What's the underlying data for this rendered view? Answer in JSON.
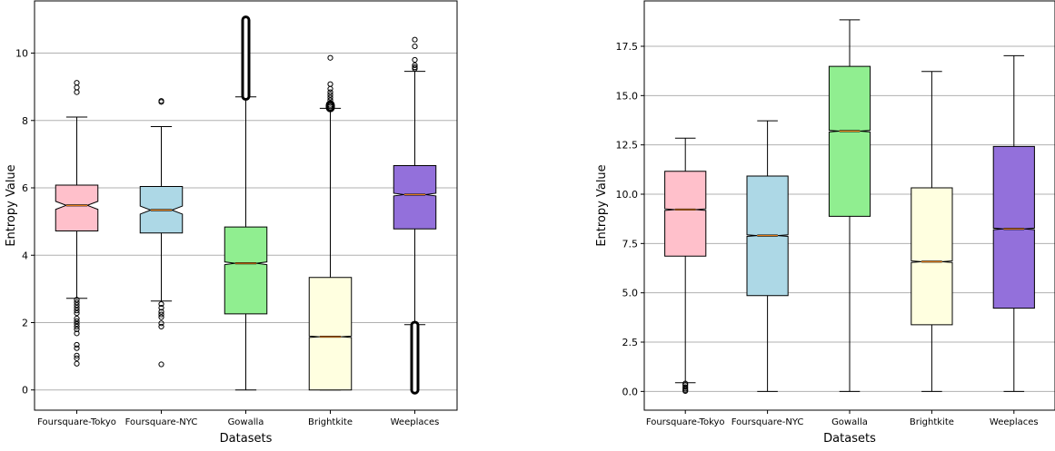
{
  "chart_data": [
    {
      "type": "boxplot",
      "notched": true,
      "xlabel": "Datasets",
      "ylabel": "Entropy Value",
      "ylim": [
        -0.6,
        11.55
      ],
      "yticks": [
        0,
        2,
        4,
        6,
        8,
        10
      ],
      "ytick_labels": [
        "0",
        "2",
        "4",
        "6",
        "8",
        "10"
      ],
      "grid": "horizontal",
      "categories": [
        "Foursquare-Tokyo",
        "Foursquare-NYC",
        "Gowalla",
        "Brightkite",
        "Weeplaces"
      ],
      "boxes": [
        {
          "whisker_low": 2.72,
          "q1": 4.72,
          "median": 5.48,
          "q3": 6.08,
          "whisker_high": 8.1,
          "notch_low": 5.36,
          "notch_high": 5.6,
          "color": "#ffc0cb",
          "outliers": [
            9.12,
            8.98,
            8.84,
            2.68,
            2.6,
            2.52,
            2.44,
            2.36,
            2.28,
            2.12,
            2.04,
            1.96,
            1.88,
            1.8,
            1.68,
            1.34,
            1.24,
            1.02,
            0.94,
            0.78
          ]
        },
        {
          "whisker_low": 2.64,
          "q1": 4.66,
          "median": 5.34,
          "q3": 6.04,
          "whisker_high": 7.82,
          "notch_low": 5.22,
          "notch_high": 5.46,
          "color": "#add8e6",
          "outliers": [
            8.58,
            8.55,
            2.55,
            2.44,
            2.32,
            2.24,
            2.16,
            1.98,
            1.88,
            0.76
          ]
        },
        {
          "whisker_low": 0.0,
          "q1": 2.26,
          "median": 3.76,
          "q3": 4.84,
          "whisker_high": 8.7,
          "notch_low": 3.72,
          "notch_high": 3.8,
          "color": "#90ee90",
          "outlier_band": [
            8.72,
            10.98
          ]
        },
        {
          "whisker_low": 0.0,
          "q1": 0.0,
          "median": 1.58,
          "q3": 3.34,
          "whisker_high": 8.36,
          "notch_low": 1.56,
          "notch_high": 1.6,
          "color": "#ffffe0",
          "outliers": [
            9.86,
            9.08,
            8.94,
            8.84,
            8.76,
            8.68,
            8.6,
            8.52,
            8.46,
            8.42
          ],
          "outlier_band": [
            8.38,
            8.46
          ]
        },
        {
          "whisker_low": 1.94,
          "q1": 4.78,
          "median": 5.8,
          "q3": 6.66,
          "whisker_high": 9.46,
          "notch_low": 5.76,
          "notch_high": 5.84,
          "color": "#9370db",
          "outliers": [
            10.4,
            10.2,
            9.8,
            9.64,
            9.58,
            9.54
          ],
          "outlier_band": [
            0.0,
            1.92
          ]
        }
      ]
    },
    {
      "type": "boxplot",
      "notched": true,
      "xlabel": "Datasets",
      "ylabel": "Entropy Value",
      "ylim": [
        -0.95,
        19.8
      ],
      "yticks": [
        0,
        2.5,
        5,
        7.5,
        10,
        12.5,
        15,
        17.5
      ],
      "ytick_labels": [
        "0.0",
        "2.5",
        "5.0",
        "7.5",
        "10.0",
        "12.5",
        "15.0",
        "17.5"
      ],
      "grid": "horizontal",
      "categories": [
        "Foursquare-Tokyo",
        "Foursquare-NYC",
        "Gowalla",
        "Brightkite",
        "Weeplaces"
      ],
      "boxes": [
        {
          "whisker_low": 0.44,
          "q1": 6.86,
          "median": 9.22,
          "q3": 11.16,
          "whisker_high": 12.84,
          "notch_low": 9.18,
          "notch_high": 9.26,
          "color": "#ffc0cb",
          "outliers": [
            0.4,
            0.32,
            0.22,
            0.14,
            0.07,
            0.02
          ]
        },
        {
          "whisker_low": 0.0,
          "q1": 4.86,
          "median": 7.9,
          "q3": 10.92,
          "whisker_high": 13.72,
          "notch_low": 7.86,
          "notch_high": 7.94,
          "color": "#add8e6",
          "outliers": []
        },
        {
          "whisker_low": 0.0,
          "q1": 8.88,
          "median": 13.2,
          "q3": 16.48,
          "whisker_high": 18.84,
          "notch_low": 13.16,
          "notch_high": 13.24,
          "color": "#90ee90",
          "outliers": []
        },
        {
          "whisker_low": 0.0,
          "q1": 3.38,
          "median": 6.58,
          "q3": 10.32,
          "whisker_high": 16.22,
          "notch_low": 6.54,
          "notch_high": 6.62,
          "color": "#ffffe0",
          "outliers": []
        },
        {
          "whisker_low": 0.0,
          "q1": 4.22,
          "median": 8.24,
          "q3": 12.42,
          "whisker_high": 17.02,
          "notch_low": 8.2,
          "notch_high": 8.28,
          "color": "#9370db",
          "outliers": []
        }
      ]
    }
  ]
}
